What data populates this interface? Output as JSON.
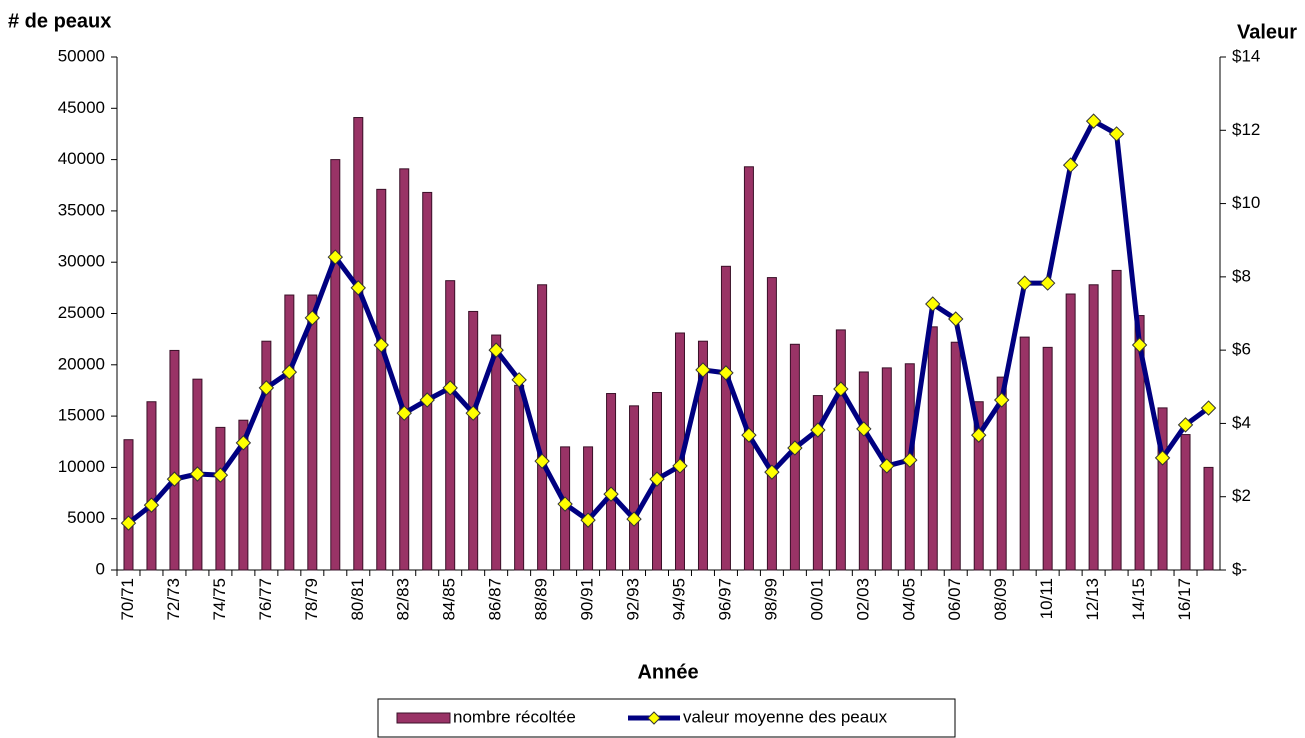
{
  "chart_data": {
    "type": "bar",
    "y_title": "# de peaux",
    "y2_title": "Valeur",
    "x_title": "Année",
    "categories": [
      "70/71",
      null,
      "72/73",
      null,
      "74/75",
      null,
      "76/77",
      null,
      "78/79",
      null,
      "80/81",
      null,
      "82/83",
      null,
      "84/85",
      null,
      "86/87",
      null,
      "88/89",
      null,
      "90/91",
      null,
      "92/93",
      null,
      "94/95",
      null,
      "96/97",
      null,
      "98/99",
      null,
      "00/01",
      null,
      "02/03",
      null,
      "04/05",
      null,
      "06/07",
      null,
      "08/09",
      null,
      "10/11",
      null,
      "12/13",
      null,
      "14/15",
      null,
      "16/17",
      null
    ],
    "series": [
      {
        "name": "nombre récoltée",
        "type": "bar",
        "color": "#993366",
        "values": [
          12700,
          16400,
          21400,
          18600,
          13900,
          14600,
          22300,
          26800,
          26800,
          40000,
          44100,
          37100,
          39100,
          36800,
          28200,
          25200,
          22900,
          18000,
          27800,
          12000,
          12000,
          17200,
          16000,
          17300,
          23100,
          22300,
          29600,
          39300,
          28500,
          22000,
          17000,
          23400,
          19300,
          19700,
          20100,
          23700,
          22200,
          16400,
          18800,
          22700,
          21700,
          26900,
          27800,
          29200,
          24800,
          15800,
          13200,
          10000
        ]
      },
      {
        "name": "valeur moyenne des peaux",
        "type": "line",
        "axis": "y2",
        "color": "#000080",
        "marker_color": "#ffff00",
        "values": [
          1.28,
          1.77,
          2.48,
          2.62,
          2.59,
          3.47,
          4.97,
          5.4,
          6.88,
          8.54,
          7.7,
          6.14,
          4.28,
          4.64,
          4.97,
          4.28,
          6.0,
          5.19,
          2.97,
          1.8,
          1.36,
          2.07,
          1.39,
          2.48,
          2.84,
          5.46,
          5.38,
          3.68,
          2.67,
          3.33,
          3.82,
          4.94,
          3.85,
          2.84,
          3.0,
          7.26,
          6.85,
          3.68,
          4.64,
          7.83,
          7.83,
          11.05,
          12.25,
          11.9,
          6.14,
          3.06,
          3.96,
          4.42
        ]
      }
    ],
    "ylim": [
      0,
      50000
    ],
    "yticks": [
      0,
      5000,
      10000,
      15000,
      20000,
      25000,
      30000,
      35000,
      40000,
      45000,
      50000
    ],
    "y2lim": [
      0,
      14
    ],
    "y2ticks": [
      {
        "value": 0,
        "label": "$-"
      },
      {
        "value": 2,
        "label": "$2"
      },
      {
        "value": 4,
        "label": "$4"
      },
      {
        "value": 6,
        "label": "$6"
      },
      {
        "value": 8,
        "label": "$8"
      },
      {
        "value": 10,
        "label": "$10"
      },
      {
        "value": 12,
        "label": "$12"
      },
      {
        "value": 14,
        "label": "$14"
      }
    ],
    "grid": false,
    "legend": "bottom"
  }
}
